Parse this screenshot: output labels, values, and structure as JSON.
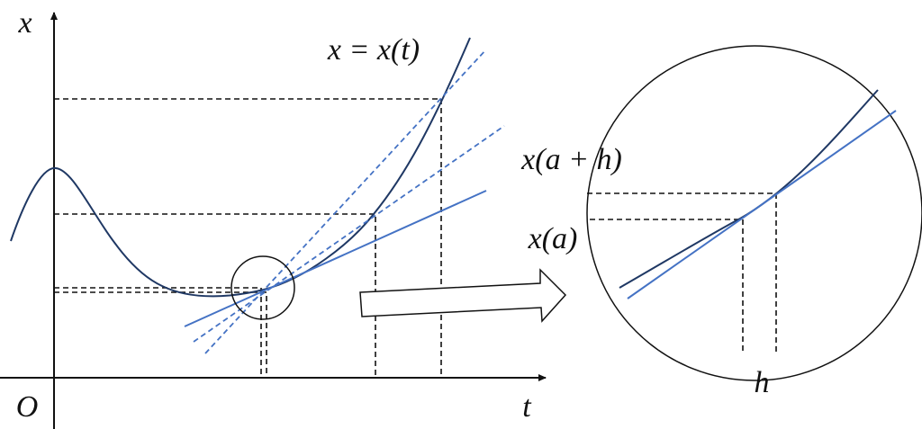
{
  "labels": {
    "x_axis_name": "t",
    "y_axis_name": "x",
    "origin": "O",
    "curve": "x = x(t)",
    "upper_value": "x(a + h)",
    "lower_value": "x(a)",
    "increment": "h"
  }
}
